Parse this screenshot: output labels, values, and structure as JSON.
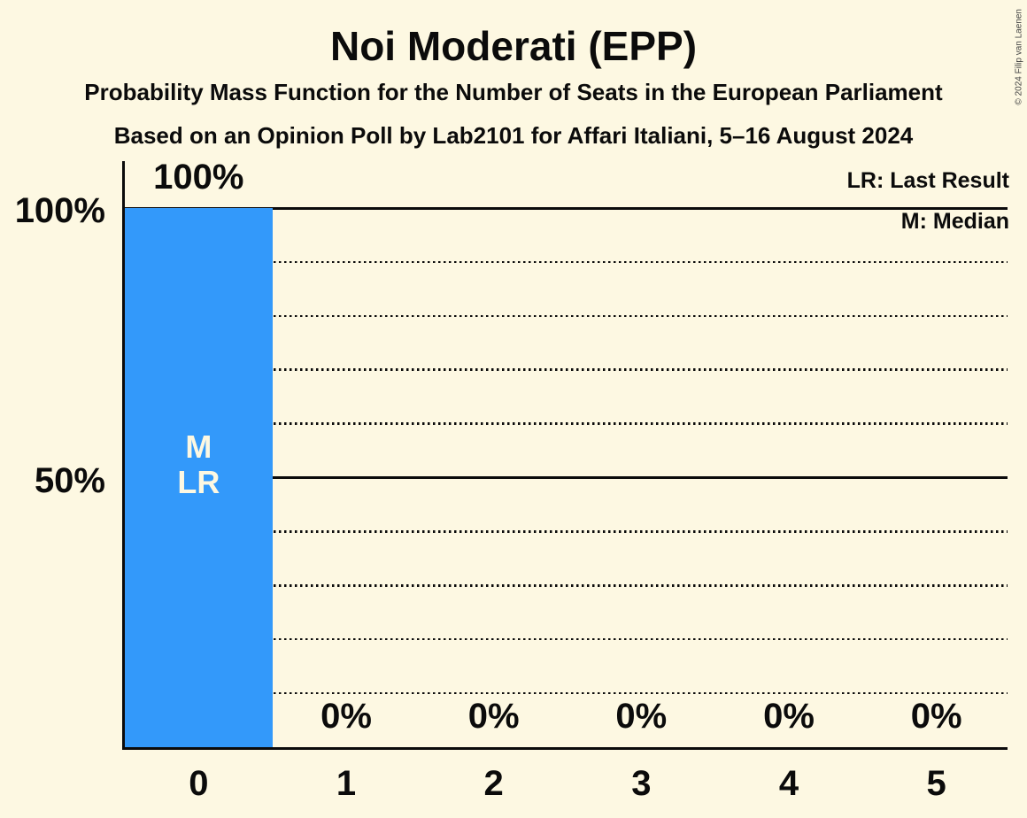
{
  "title": "Noi Moderati (EPP)",
  "subtitle1": "Probability Mass Function for the Number of Seats in the European Parliament",
  "subtitle2": "Based on an Opinion Poll by Lab2101 for Affari Italiani, 5–16 August 2024",
  "copyright": "© 2024 Filip van Laenen",
  "legend": {
    "lr": "LR: Last Result",
    "m": "M: Median"
  },
  "colors": {
    "background": "#fdf8e2",
    "bar": "#3399fa",
    "text": "#0b0b0b"
  },
  "chart_data": {
    "type": "bar",
    "title": "Noi Moderati (EPP)",
    "categories": [
      "0",
      "1",
      "2",
      "3",
      "4",
      "5"
    ],
    "values": [
      100,
      0,
      0,
      0,
      0,
      0
    ],
    "value_labels": [
      "100%",
      "0%",
      "0%",
      "0%",
      "0%",
      "0%"
    ],
    "xlabel": "",
    "ylabel": "",
    "ylim": [
      0,
      109
    ],
    "y_ticks": [
      {
        "value": 100,
        "label": "100%"
      },
      {
        "value": 50,
        "label": "50%"
      }
    ],
    "solid_gridlines": [
      100,
      50
    ],
    "dotted_gridlines": [
      90,
      80,
      70,
      60,
      40,
      30,
      20,
      10
    ],
    "annotations": [
      {
        "category_index": 0,
        "lines": [
          "M",
          "LR"
        ]
      }
    ],
    "legend_position": "top-right",
    "grid": "horizontal-only"
  }
}
